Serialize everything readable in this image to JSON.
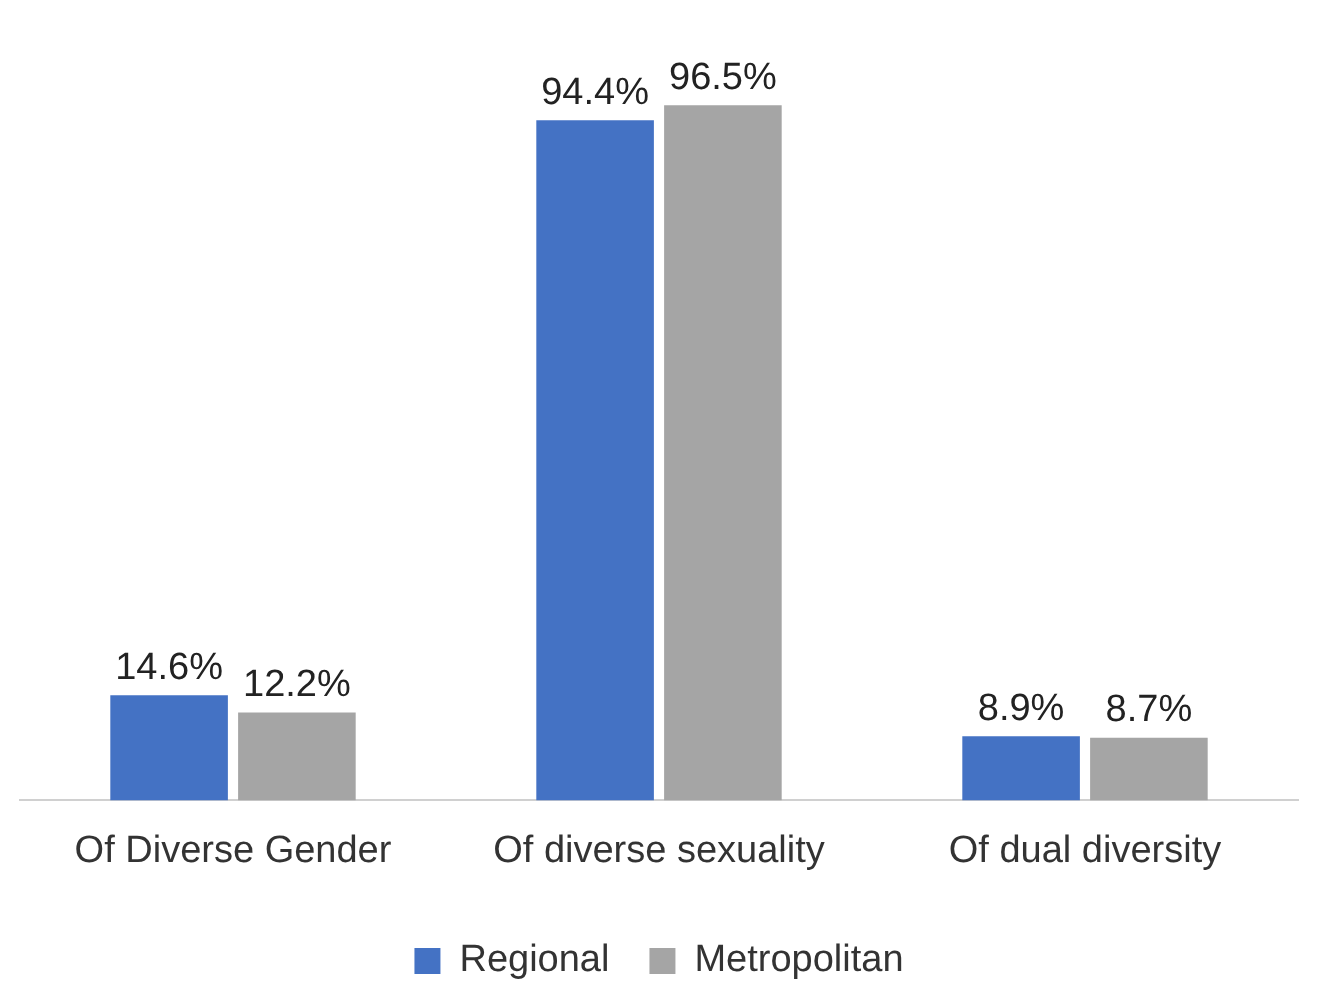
{
  "chart_data": {
    "type": "bar",
    "categories": [
      "Of Diverse Gender",
      "Of diverse sexuality",
      "Of dual diversity"
    ],
    "series": [
      {
        "name": "Regional",
        "color": "#4472c4",
        "values": [
          14.6,
          94.4,
          8.9
        ],
        "value_labels": [
          "14.6%",
          "94.4%",
          "8.9%"
        ]
      },
      {
        "name": "Metropolitan",
        "color": "#a5a5a5",
        "values": [
          12.2,
          96.5,
          8.7
        ],
        "value_labels": [
          "12.2%",
          "96.5%",
          "8.7%"
        ]
      }
    ],
    "legend": "bottom",
    "grid": false
  }
}
